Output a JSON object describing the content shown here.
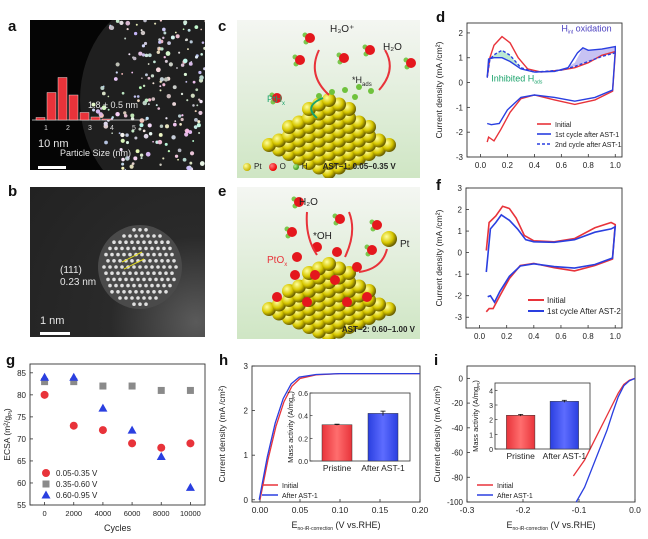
{
  "panels": {
    "a": {
      "label": "a",
      "scalebar": "10 nm",
      "mean": "1.8 ± 0.5 nm",
      "hist_xlabel": "Particle Size (nm)",
      "hist_ticks": [
        "1",
        "2",
        "3",
        "4",
        "5"
      ],
      "hist_values": [
        0.05,
        0.55,
        0.85,
        0.5,
        0.15,
        0.06,
        0.02
      ]
    },
    "b": {
      "label": "b",
      "scalebar": "1 nm",
      "plane": "(111)",
      "spacing": "0.23 nm"
    },
    "c": {
      "label": "c",
      "h3o": "H₃O⁺",
      "h2o": "H₂O",
      "hads": "*H",
      "hads_sub": "ads",
      "pthx": "PtH",
      "pthx_sub": "x",
      "legend_pt": "Pt",
      "legend_o": "O",
      "legend_h": "H",
      "condition": "AST−1: 0.05–0.35 V"
    },
    "e": {
      "label": "e",
      "h2o": "H₂O",
      "oh": "*OH",
      "pto": "PtO",
      "pto_sub": "x",
      "pt": "Pt",
      "condition": "AST−2: 0.60–1.00 V"
    }
  },
  "colors": {
    "red": "#e8333a",
    "blue": "#2a3fe0",
    "gray": "#8a8a8a",
    "green": "#1aa36b",
    "purple": "#5a4fc8"
  },
  "chart_data": [
    {
      "id": "d",
      "label": "d",
      "type": "line",
      "xlabel": "E",
      "xlabel_sub": "no iR correction",
      "xlabel_rest": " (V vs.RHE)",
      "ylabel": "Current density (mA /cm²)",
      "xlim": [
        -0.1,
        1.05
      ],
      "ylim": [
        -3,
        2.4
      ],
      "xticks": [
        "0.0",
        "0.2",
        "0.4",
        "0.6",
        "0.8",
        "1.0"
      ],
      "yticks": [
        "-3",
        "-2",
        "-1",
        "0",
        "1",
        "2"
      ],
      "annotations": {
        "hint": "H",
        "hint_sub": "int",
        "hint_rest": " oxidation",
        "inhibited": "Inhibited H",
        "inhibited_sub": "ads"
      },
      "series": [
        {
          "name": "Initial",
          "color": "#e8333a",
          "dash": false,
          "upper": [
            [
              0.05,
              0.2
            ],
            [
              0.07,
              1.0
            ],
            [
              0.1,
              1.5
            ],
            [
              0.16,
              1.85
            ],
            [
              0.22,
              1.6
            ],
            [
              0.28,
              1.0
            ],
            [
              0.35,
              0.55
            ],
            [
              0.45,
              0.42
            ],
            [
              0.6,
              0.5
            ],
            [
              0.7,
              0.6
            ],
            [
              0.8,
              0.8
            ],
            [
              0.9,
              1.1
            ],
            [
              1.0,
              1.25
            ]
          ],
          "lower": [
            [
              1.0,
              1.2
            ],
            [
              0.98,
              -0.35
            ],
            [
              0.85,
              -0.7
            ],
            [
              0.7,
              -0.88
            ],
            [
              0.55,
              -0.7
            ],
            [
              0.4,
              -0.5
            ],
            [
              0.3,
              -0.65
            ],
            [
              0.22,
              -1.2
            ],
            [
              0.15,
              -1.9
            ],
            [
              0.1,
              -2.35
            ],
            [
              0.06,
              -2.2
            ],
            [
              0.05,
              -2.4
            ]
          ]
        },
        {
          "name": "1st cycle after AST-1",
          "color": "#2a3fe0",
          "dash": false,
          "upper": [
            [
              0.05,
              0.2
            ],
            [
              0.06,
              0.95
            ],
            [
              0.1,
              1.0
            ],
            [
              0.16,
              1.0
            ],
            [
              0.22,
              0.85
            ],
            [
              0.3,
              0.55
            ],
            [
              0.4,
              0.42
            ],
            [
              0.55,
              0.45
            ],
            [
              0.65,
              0.6
            ],
            [
              0.72,
              1.2
            ],
            [
              0.76,
              1.4
            ],
            [
              0.8,
              1.3
            ],
            [
              0.9,
              1.35
            ],
            [
              1.0,
              1.45
            ]
          ],
          "lower": [
            [
              1.0,
              1.3
            ],
            [
              0.98,
              -0.3
            ],
            [
              0.85,
              -0.6
            ],
            [
              0.7,
              -0.75
            ],
            [
              0.55,
              -0.6
            ],
            [
              0.4,
              -0.5
            ],
            [
              0.3,
              -0.6
            ],
            [
              0.2,
              -1.1
            ],
            [
              0.14,
              -1.65
            ],
            [
              0.08,
              -1.7
            ],
            [
              0.05,
              -1.65
            ]
          ]
        },
        {
          "name": "2nd cycle after AST-1",
          "color": "#2a3fe0",
          "dash": true,
          "upper": [
            [
              0.05,
              0.2
            ],
            [
              0.07,
              0.95
            ],
            [
              0.11,
              1.15
            ],
            [
              0.16,
              1.3
            ],
            [
              0.22,
              1.1
            ],
            [
              0.3,
              0.6
            ],
            [
              0.4,
              0.42
            ],
            [
              0.6,
              0.5
            ],
            [
              0.7,
              0.65
            ],
            [
              0.8,
              0.85
            ],
            [
              0.9,
              1.05
            ],
            [
              1.0,
              1.2
            ]
          ],
          "lower": []
        }
      ],
      "legend": "bottom-right"
    },
    {
      "id": "f",
      "label": "f",
      "type": "line",
      "xlabel": "E",
      "xlabel_sub": "no-iR-correction",
      "xlabel_rest": " (V vs.RHE)",
      "ylabel": "Current density (mA /cm²)",
      "xlim": [
        -0.1,
        1.05
      ],
      "ylim": [
        -3.5,
        3
      ],
      "xticks": [
        "0.0",
        "0.2",
        "0.4",
        "0.6",
        "0.8",
        "1.0"
      ],
      "yticks": [
        "-3",
        "-2",
        "-1",
        "0",
        "1",
        "2",
        "3"
      ],
      "series": [
        {
          "name": "Initial",
          "color": "#e8333a",
          "upper": [
            [
              0.05,
              0.1
            ],
            [
              0.07,
              1.4
            ],
            [
              0.12,
              1.7
            ],
            [
              0.17,
              2.15
            ],
            [
              0.22,
              2.05
            ],
            [
              0.27,
              1.6
            ],
            [
              0.33,
              0.8
            ],
            [
              0.4,
              0.55
            ],
            [
              0.55,
              0.5
            ],
            [
              0.7,
              0.65
            ],
            [
              0.85,
              1.15
            ],
            [
              0.97,
              1.4
            ],
            [
              1.0,
              1.3
            ]
          ],
          "lower": [
            [
              1.0,
              1.3
            ],
            [
              0.98,
              -0.3
            ],
            [
              0.85,
              -0.6
            ],
            [
              0.7,
              -0.85
            ],
            [
              0.55,
              -0.7
            ],
            [
              0.4,
              -0.5
            ],
            [
              0.3,
              -0.6
            ],
            [
              0.22,
              -1.2
            ],
            [
              0.15,
              -2.0
            ],
            [
              0.1,
              -2.6
            ],
            [
              0.07,
              -2.6
            ],
            [
              0.05,
              -2.75
            ]
          ]
        },
        {
          "name": "1st cycle After AST-2",
          "color": "#2a3fe0",
          "upper": [
            [
              0.05,
              -0.9
            ],
            [
              0.08,
              1.1
            ],
            [
              0.12,
              1.4
            ],
            [
              0.16,
              1.75
            ],
            [
              0.22,
              1.5
            ],
            [
              0.28,
              1.1
            ],
            [
              0.34,
              0.6
            ],
            [
              0.4,
              0.5
            ],
            [
              0.55,
              0.48
            ],
            [
              0.7,
              0.6
            ],
            [
              0.85,
              0.95
            ],
            [
              0.97,
              1.1
            ],
            [
              1.0,
              1.2
            ]
          ],
          "lower": [
            [
              1.0,
              1.2
            ],
            [
              0.98,
              -0.25
            ],
            [
              0.85,
              -0.55
            ],
            [
              0.7,
              -0.72
            ],
            [
              0.55,
              -0.65
            ],
            [
              0.4,
              -0.52
            ],
            [
              0.3,
              -0.62
            ],
            [
              0.22,
              -1.1
            ],
            [
              0.15,
              -1.8
            ],
            [
              0.11,
              -2.3
            ],
            [
              0.08,
              -2.0
            ],
            [
              0.06,
              -2.05
            ]
          ]
        }
      ],
      "legend": "bottom-right"
    },
    {
      "id": "g",
      "label": "g",
      "type": "scatter",
      "xlabel": "Cycles",
      "ylabel": "ECSA (m²/g",
      "ylabel_sub": "Pt",
      "ylabel_end": ")",
      "xlim": [
        -1000,
        11000
      ],
      "ylim": [
        55,
        87
      ],
      "xticks": [
        "0",
        "2000",
        "4000",
        "6000",
        "8000",
        "10000"
      ],
      "yticks": [
        "55",
        "60",
        "65",
        "70",
        "75",
        "80",
        "85"
      ],
      "x": [
        0,
        2000,
        4000,
        6000,
        8000,
        10000
      ],
      "series": [
        {
          "name": "0.05-0.35 V",
          "color": "#e8333a",
          "marker": "circle",
          "values": [
            80,
            73,
            72,
            69,
            68,
            69
          ]
        },
        {
          "name": "0.35-0.60 V",
          "color": "#8a8a8a",
          "marker": "square",
          "values": [
            83,
            83,
            82,
            82,
            81,
            81
          ]
        },
        {
          "name": "0.60-0.95 V",
          "color": "#2a3fe0",
          "marker": "triangle",
          "values": [
            84,
            84,
            77,
            72,
            66,
            59
          ]
        }
      ],
      "legend": "bottom-left"
    },
    {
      "id": "h",
      "label": "h",
      "type": "line",
      "xlabel": "E",
      "xlabel_sub": "no-iR-correction",
      "xlabel_rest": " (V vs.RHE)",
      "ylabel": "Current density (mA /cm²)",
      "xlim": [
        -0.01,
        0.2
      ],
      "ylim": [
        -0.05,
        3
      ],
      "xticks": [
        "0.00",
        "0.05",
        "0.10",
        "0.15",
        "0.20"
      ],
      "yticks": [
        "0",
        "1",
        "2",
        "3"
      ],
      "series": [
        {
          "name": "Initial",
          "color": "#e8333a",
          "points": [
            [
              0.0,
              0
            ],
            [
              0.01,
              0.9
            ],
            [
              0.02,
              1.65
            ],
            [
              0.03,
              2.2
            ],
            [
              0.04,
              2.55
            ],
            [
              0.05,
              2.72
            ],
            [
              0.07,
              2.8
            ],
            [
              0.1,
              2.83
            ],
            [
              0.2,
              2.83
            ]
          ]
        },
        {
          "name": "After AST-1",
          "color": "#2a3fe0",
          "points": [
            [
              -0.001,
              0
            ],
            [
              0.009,
              0.95
            ],
            [
              0.019,
              1.72
            ],
            [
              0.029,
              2.27
            ],
            [
              0.039,
              2.6
            ],
            [
              0.049,
              2.75
            ],
            [
              0.07,
              2.81
            ],
            [
              0.1,
              2.83
            ],
            [
              0.2,
              2.83
            ]
          ]
        }
      ],
      "inset": {
        "ylabel": "Mass activity (A/mg",
        "ylabel_sub": "Pt",
        "ylabel_end": ")",
        "ylim": [
          0,
          0.6
        ],
        "yticks": [
          "0.0",
          "0.2",
          "0.4",
          "0.6"
        ],
        "categories": [
          "Pristine",
          "After AST-1"
        ],
        "values": [
          0.32,
          0.42
        ],
        "errors": [
          0.005,
          0.02
        ],
        "colors": [
          "#e8333a",
          "#2a3fe0"
        ]
      },
      "legend": "bottom-left"
    },
    {
      "id": "i",
      "label": "i",
      "type": "line",
      "xlabel": "E",
      "xlabel_sub": "no-iR-correction",
      "xlabel_rest": " (V vs.RHE)",
      "ylabel": "Current density (mA /cm²)",
      "xlim": [
        -0.3,
        0.0
      ],
      "ylim": [
        -100,
        10
      ],
      "xticks": [
        "-0.3",
        "-0.2",
        "-0.1",
        "0.0"
      ],
      "yticks": [
        "-100",
        "-80",
        "-60",
        "-40",
        "-20",
        "0"
      ],
      "series": [
        {
          "name": "Initial",
          "color": "#e8333a",
          "points": [
            [
              -0.11,
              -79
            ],
            [
              -0.09,
              -66
            ],
            [
              -0.07,
              -48
            ],
            [
              -0.05,
              -30
            ],
            [
              -0.03,
              -12
            ],
            [
              -0.02,
              -5
            ],
            [
              -0.01,
              -1.5
            ],
            [
              0.0,
              0
            ]
          ]
        },
        {
          "name": "After AST-1",
          "color": "#2a3fe0",
          "points": [
            [
              -0.105,
              -100
            ],
            [
              -0.09,
              -88
            ],
            [
              -0.07,
              -65
            ],
            [
              -0.05,
              -42
            ],
            [
              -0.04,
              -28
            ],
            [
              -0.03,
              -15
            ],
            [
              -0.02,
              -6
            ],
            [
              -0.01,
              -2
            ],
            [
              0.0,
              0
            ]
          ]
        }
      ],
      "inset": {
        "ylabel": "Mass activity (A/mg",
        "ylabel_sub": "Pt",
        "ylabel_end": ")",
        "ylim": [
          0,
          4.5
        ],
        "yticks": [
          "0",
          "1",
          "2",
          "3",
          "4"
        ],
        "categories": [
          "Pristine",
          "After AST-1"
        ],
        "values": [
          2.3,
          3.25
        ],
        "errors": [
          0.06,
          0.07
        ],
        "colors": [
          "#e8333a",
          "#2a3fe0"
        ]
      },
      "legend": "bottom-left"
    }
  ]
}
